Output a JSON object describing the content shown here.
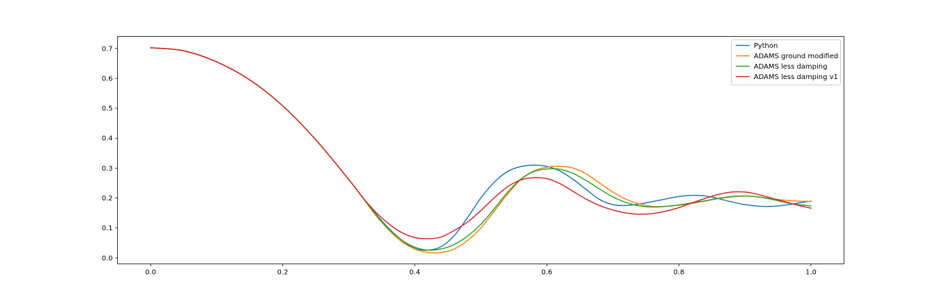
{
  "chart_data": {
    "type": "line",
    "title": "",
    "xlabel": "",
    "ylabel": "",
    "xlim": [
      -0.05,
      1.05
    ],
    "ylim": [
      -0.02,
      0.74
    ],
    "x_ticks": [
      0.0,
      0.2,
      0.4,
      0.6,
      0.8,
      1.0
    ],
    "x_tick_labels": [
      "0.0",
      "0.2",
      "0.4",
      "0.6",
      "0.8",
      "1.0"
    ],
    "y_ticks": [
      0.0,
      0.1,
      0.2,
      0.3,
      0.4,
      0.5,
      0.6,
      0.7
    ],
    "y_tick_labels": [
      "0.0",
      "0.1",
      "0.2",
      "0.3",
      "0.4",
      "0.5",
      "0.6",
      "0.7"
    ],
    "grid": false,
    "legend_position": "top-right",
    "series": [
      {
        "name": "Python",
        "color": "#1f77b4",
        "x": [
          0.0,
          0.05,
          0.1,
          0.15,
          0.2,
          0.25,
          0.3,
          0.32,
          0.34,
          0.36,
          0.38,
          0.4,
          0.42,
          0.44,
          0.46,
          0.48,
          0.5,
          0.52,
          0.54,
          0.56,
          0.58,
          0.6,
          0.62,
          0.64,
          0.66,
          0.68,
          0.7,
          0.72,
          0.74,
          0.76,
          0.78,
          0.8,
          0.82,
          0.84,
          0.86,
          0.88,
          0.9,
          0.92,
          0.94,
          0.96,
          0.98,
          1.0
        ],
        "y": [
          0.702,
          0.692,
          0.655,
          0.595,
          0.508,
          0.395,
          0.262,
          0.205,
          0.15,
          0.1,
          0.06,
          0.032,
          0.026,
          0.038,
          0.075,
          0.135,
          0.2,
          0.252,
          0.288,
          0.305,
          0.31,
          0.306,
          0.29,
          0.262,
          0.228,
          0.195,
          0.178,
          0.175,
          0.18,
          0.188,
          0.197,
          0.205,
          0.209,
          0.207,
          0.198,
          0.187,
          0.178,
          0.173,
          0.172,
          0.176,
          0.183,
          0.19
        ]
      },
      {
        "name": "ADAMS ground modified",
        "color": "#ff7f0e",
        "x": [
          0.0,
          0.05,
          0.1,
          0.15,
          0.2,
          0.25,
          0.3,
          0.32,
          0.34,
          0.36,
          0.38,
          0.4,
          0.42,
          0.44,
          0.46,
          0.48,
          0.5,
          0.52,
          0.54,
          0.56,
          0.58,
          0.6,
          0.62,
          0.64,
          0.66,
          0.68,
          0.7,
          0.72,
          0.74,
          0.76,
          0.78,
          0.8,
          0.82,
          0.84,
          0.86,
          0.88,
          0.9,
          0.92,
          0.94,
          0.96,
          0.98,
          1.0
        ],
        "y": [
          0.702,
          0.692,
          0.655,
          0.595,
          0.508,
          0.395,
          0.262,
          0.205,
          0.145,
          0.095,
          0.055,
          0.03,
          0.018,
          0.018,
          0.03,
          0.058,
          0.1,
          0.155,
          0.212,
          0.26,
          0.29,
          0.303,
          0.306,
          0.3,
          0.28,
          0.25,
          0.22,
          0.196,
          0.18,
          0.172,
          0.172,
          0.176,
          0.182,
          0.19,
          0.198,
          0.204,
          0.207,
          0.204,
          0.198,
          0.193,
          0.19,
          0.189
        ]
      },
      {
        "name": "ADAMS less damping",
        "color": "#2ca02c",
        "x": [
          0.0,
          0.05,
          0.1,
          0.15,
          0.2,
          0.25,
          0.3,
          0.32,
          0.34,
          0.36,
          0.38,
          0.4,
          0.42,
          0.44,
          0.46,
          0.48,
          0.5,
          0.52,
          0.54,
          0.56,
          0.58,
          0.6,
          0.62,
          0.64,
          0.66,
          0.68,
          0.7,
          0.72,
          0.74,
          0.76,
          0.78,
          0.8,
          0.82,
          0.84,
          0.86,
          0.88,
          0.9,
          0.92,
          0.94,
          0.96,
          0.98,
          1.0
        ],
        "y": [
          0.702,
          0.692,
          0.655,
          0.595,
          0.508,
          0.395,
          0.262,
          0.205,
          0.148,
          0.098,
          0.06,
          0.036,
          0.026,
          0.03,
          0.045,
          0.073,
          0.112,
          0.163,
          0.218,
          0.262,
          0.288,
          0.297,
          0.296,
          0.282,
          0.258,
          0.23,
          0.204,
          0.185,
          0.174,
          0.17,
          0.172,
          0.177,
          0.184,
          0.191,
          0.199,
          0.205,
          0.207,
          0.204,
          0.196,
          0.186,
          0.178,
          0.174
        ]
      },
      {
        "name": "ADAMS less damping v1",
        "color": "#d62728",
        "x": [
          0.0,
          0.05,
          0.1,
          0.15,
          0.2,
          0.25,
          0.3,
          0.32,
          0.34,
          0.36,
          0.38,
          0.4,
          0.42,
          0.44,
          0.46,
          0.48,
          0.5,
          0.52,
          0.54,
          0.56,
          0.58,
          0.6,
          0.62,
          0.64,
          0.66,
          0.68,
          0.7,
          0.72,
          0.74,
          0.76,
          0.78,
          0.8,
          0.82,
          0.84,
          0.86,
          0.88,
          0.9,
          0.92,
          0.94,
          0.96,
          0.98,
          1.0
        ],
        "y": [
          0.702,
          0.692,
          0.655,
          0.595,
          0.508,
          0.395,
          0.262,
          0.205,
          0.155,
          0.115,
          0.085,
          0.068,
          0.064,
          0.07,
          0.092,
          0.12,
          0.158,
          0.2,
          0.237,
          0.26,
          0.268,
          0.265,
          0.248,
          0.222,
          0.196,
          0.175,
          0.16,
          0.15,
          0.146,
          0.148,
          0.156,
          0.168,
          0.184,
          0.199,
          0.212,
          0.22,
          0.22,
          0.212,
          0.2,
          0.188,
          0.176,
          0.166
        ]
      }
    ]
  }
}
